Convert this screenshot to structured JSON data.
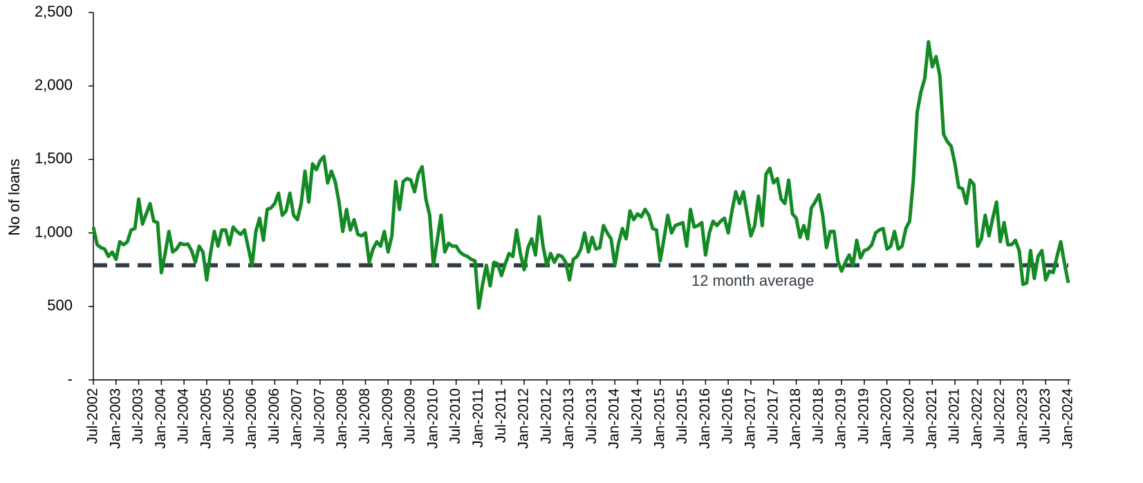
{
  "chart_data": {
    "type": "line",
    "y_label": "No of loans",
    "categories": [
      "Jul-2002",
      null,
      null,
      null,
      null,
      null,
      "Jan-2003",
      null,
      null,
      null,
      null,
      null,
      "Jul-2003",
      null,
      null,
      null,
      null,
      null,
      "Jan-2004",
      null,
      null,
      null,
      null,
      null,
      "Jul-2004",
      null,
      null,
      null,
      null,
      null,
      "Jan-2005",
      null,
      null,
      null,
      null,
      null,
      "Jul-2005",
      null,
      null,
      null,
      null,
      null,
      "Jan-2006",
      null,
      null,
      null,
      null,
      null,
      "Jul-2006",
      null,
      null,
      null,
      null,
      null,
      "Jan-2007",
      null,
      null,
      null,
      null,
      null,
      "Jul-2007",
      null,
      null,
      null,
      null,
      null,
      "Jan-2008",
      null,
      null,
      null,
      null,
      null,
      "Jul-2008",
      null,
      null,
      null,
      null,
      null,
      "Jan-2009",
      null,
      null,
      null,
      null,
      null,
      "Jul-2009",
      null,
      null,
      null,
      null,
      null,
      "Jan-2010",
      null,
      null,
      null,
      null,
      null,
      "Jul-2010",
      null,
      null,
      null,
      null,
      null,
      "Jan-2011",
      null,
      null,
      null,
      null,
      null,
      "Jul-2011",
      null,
      null,
      null,
      null,
      null,
      "Jan-2012",
      null,
      null,
      null,
      null,
      null,
      "Jul-2012",
      null,
      null,
      null,
      null,
      null,
      "Jan-2013",
      null,
      null,
      null,
      null,
      null,
      "Jul-2013",
      null,
      null,
      null,
      null,
      null,
      "Jan-2014",
      null,
      null,
      null,
      null,
      null,
      "Jul-2014",
      null,
      null,
      null,
      null,
      null,
      "Jan-2015",
      null,
      null,
      null,
      null,
      null,
      "Jul-2015",
      null,
      null,
      null,
      null,
      null,
      "Jan-2016",
      null,
      null,
      null,
      null,
      null,
      "Jul-2016",
      null,
      null,
      null,
      null,
      null,
      "Jan-2017",
      null,
      null,
      null,
      null,
      null,
      "Jul-2017",
      null,
      null,
      null,
      null,
      null,
      "Jan-2018",
      null,
      null,
      null,
      null,
      null,
      "Jul-2018",
      null,
      null,
      null,
      null,
      null,
      "Jan-2019",
      null,
      null,
      null,
      null,
      null,
      "Jul-2019",
      null,
      null,
      null,
      null,
      null,
      "Jan-2020",
      null,
      null,
      null,
      null,
      null,
      "Jul-2020",
      null,
      null,
      null,
      null,
      null,
      "Jan-2021",
      null,
      null,
      null,
      null,
      null,
      "Jul-2021",
      null,
      null,
      null,
      null,
      null,
      "Jan-2022",
      null,
      null,
      null,
      null,
      null,
      "Jul-2022",
      null,
      null,
      null,
      null,
      null,
      "Jan-2023",
      null,
      null,
      null,
      null,
      null,
      "Jul-2023",
      null,
      null,
      null,
      null,
      null,
      "Jan-2024"
    ],
    "values": [
      1040,
      920,
      900,
      890,
      840,
      870,
      820,
      940,
      920,
      940,
      1020,
      1030,
      1230,
      1060,
      1130,
      1200,
      1080,
      1070,
      730,
      860,
      1010,
      870,
      890,
      930,
      920,
      925,
      880,
      800,
      910,
      870,
      680,
      860,
      1010,
      910,
      1020,
      1020,
      920,
      1040,
      1010,
      990,
      1020,
      900,
      780,
      1010,
      1100,
      950,
      1160,
      1170,
      1200,
      1270,
      1120,
      1150,
      1270,
      1120,
      1090,
      1200,
      1420,
      1210,
      1470,
      1430,
      1490,
      1520,
      1340,
      1420,
      1350,
      1210,
      1010,
      1160,
      1020,
      1090,
      990,
      980,
      1000,
      800,
      890,
      940,
      910,
      1010,
      870,
      980,
      1350,
      1160,
      1350,
      1370,
      1360,
      1280,
      1400,
      1450,
      1230,
      1120,
      780,
      950,
      1120,
      870,
      930,
      910,
      910,
      870,
      850,
      840,
      820,
      810,
      490,
      650,
      780,
      640,
      800,
      790,
      710,
      790,
      860,
      840,
      1020,
      860,
      750,
      900,
      960,
      850,
      1110,
      910,
      780,
      860,
      800,
      850,
      840,
      800,
      680,
      820,
      840,
      890,
      1000,
      870,
      970,
      890,
      900,
      1050,
      1000,
      960,
      780,
      930,
      1030,
      960,
      1150,
      1090,
      1130,
      1110,
      1160,
      1120,
      1030,
      1020,
      810,
      960,
      1120,
      1000,
      1050,
      1060,
      1070,
      910,
      1160,
      1040,
      1050,
      1070,
      850,
      1000,
      1080,
      1050,
      1080,
      1100,
      1000,
      1150,
      1280,
      1200,
      1280,
      1130,
      980,
      1050,
      1250,
      1050,
      1400,
      1440,
      1340,
      1370,
      1230,
      1200,
      1360,
      1130,
      1100,
      970,
      1050,
      960,
      1170,
      1210,
      1260,
      1120,
      900,
      1010,
      1010,
      810,
      740,
      800,
      850,
      780,
      950,
      830,
      880,
      890,
      920,
      1000,
      1020,
      1030,
      890,
      910,
      1010,
      890,
      910,
      1030,
      1080,
      1360,
      1820,
      1960,
      2050,
      2300,
      2130,
      2200,
      2070,
      1670,
      1620,
      1590,
      1470,
      1310,
      1300,
      1200,
      1360,
      1330,
      910,
      960,
      1120,
      980,
      1100,
      1210,
      940,
      1070,
      920,
      920,
      950,
      880,
      650,
      660,
      880,
      690,
      840,
      880,
      680,
      740,
      730,
      840,
      940,
      790,
      660
    ],
    "color": "#148a25",
    "average": {
      "value": 780,
      "label": "12 month average",
      "color": "#343d46"
    },
    "ylim": [
      0,
      2500
    ],
    "yticks": [
      {
        "value": 0,
        "label": "-"
      },
      500,
      {
        "value": 1000,
        "label": "1,000"
      },
      {
        "value": 1500,
        "label": "1,500"
      },
      {
        "value": 2000,
        "label": "2,000"
      },
      {
        "value": 2500,
        "label": "2,500"
      }
    ],
    "grid": false
  }
}
